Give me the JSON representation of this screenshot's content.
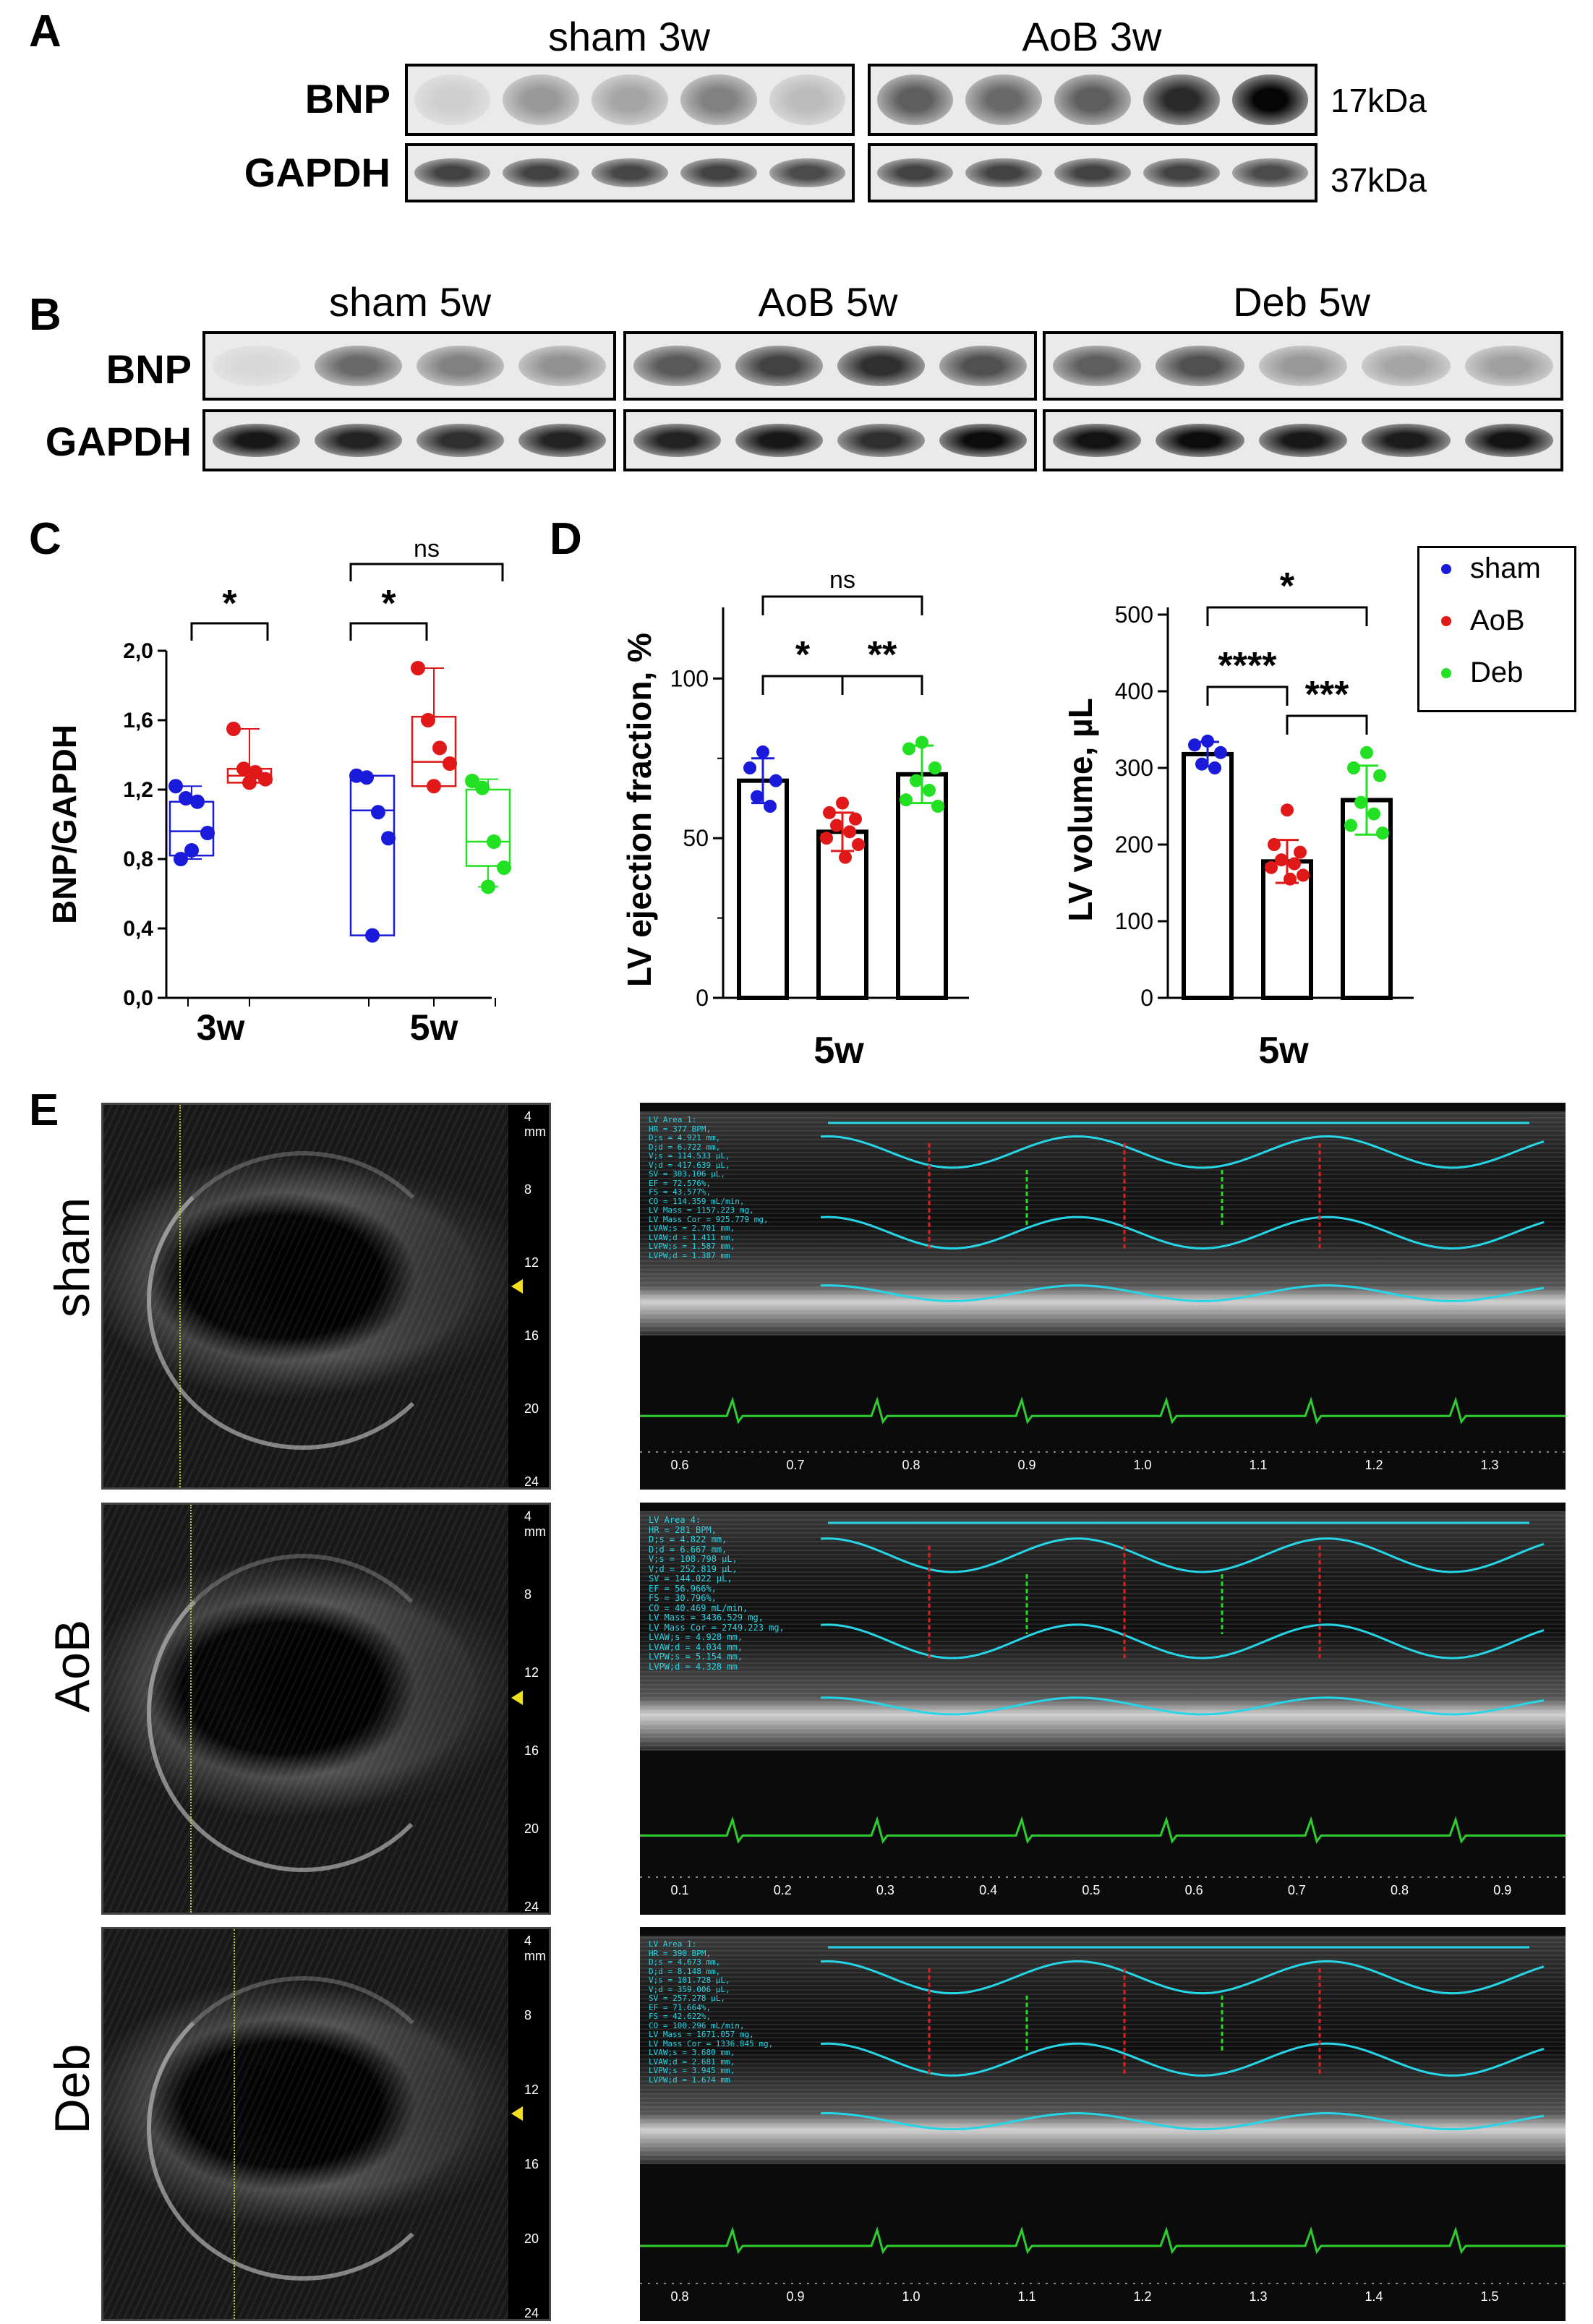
{
  "panels": {
    "A": "A",
    "B": "B",
    "C": "C",
    "D": "D",
    "E": "E"
  },
  "blots": {
    "a": {
      "groups": [
        "sham 3w",
        "AoB 3w"
      ],
      "rows": [
        "BNP",
        "GAPDH"
      ],
      "sizes": [
        "17kDa",
        "37kDa"
      ],
      "bnp_band_intensity": [
        [
          0.12,
          0.35,
          0.3,
          0.45,
          0.2
        ],
        [
          0.6,
          0.55,
          0.6,
          0.82,
          0.98
        ]
      ],
      "gapdh_band_intensity": [
        [
          0.72,
          0.72,
          0.7,
          0.72,
          0.68
        ],
        [
          0.72,
          0.72,
          0.72,
          0.72,
          0.68
        ]
      ]
    },
    "b": {
      "groups": [
        "sham 5w",
        "AoB 5w",
        "Deb 5w"
      ],
      "rows": [
        "BNP",
        "GAPDH"
      ],
      "bnp_band_intensity": [
        [
          0.08,
          0.55,
          0.45,
          0.38
        ],
        [
          0.62,
          0.72,
          0.8,
          0.66
        ],
        [
          0.6,
          0.66,
          0.35,
          0.3,
          0.32
        ]
      ],
      "gapdh_band_intensity": [
        [
          0.9,
          0.85,
          0.8,
          0.85
        ],
        [
          0.85,
          0.9,
          0.8,
          0.95
        ],
        [
          0.92,
          0.95,
          0.9,
          0.88,
          0.92
        ]
      ]
    }
  },
  "colors": {
    "sham": "#1a1adb",
    "AoB": "#e01818",
    "Deb": "#22e022",
    "cyan": "#27d6e6",
    "ecg": "#2ecc2e"
  },
  "legend": [
    {
      "name": "sham",
      "color": "#1a1adb"
    },
    {
      "name": "AoB",
      "color": "#e01818"
    },
    {
      "name": "Deb",
      "color": "#22e022"
    }
  ],
  "chart_data": [
    {
      "type": "box",
      "ylabel": "BNP/GAPDH",
      "ylim": [
        0.0,
        2.0
      ],
      "yticks": [
        "0,0",
        "0,4",
        "0,8",
        "1,2",
        "1,6",
        "2,0"
      ],
      "categories": [
        "3w",
        "5w"
      ],
      "groups": [
        {
          "category": "3w",
          "series": "sham",
          "color": "#1a1adb",
          "q1": 0.82,
          "median": 0.96,
          "q3": 1.13,
          "min": 0.8,
          "max": 1.22,
          "points": [
            1.22,
            1.15,
            1.13,
            0.95,
            0.85,
            0.8
          ]
        },
        {
          "category": "3w",
          "series": "AoB",
          "color": "#e01818",
          "q1": 1.24,
          "median": 1.28,
          "q3": 1.32,
          "min": 1.24,
          "max": 1.55,
          "points": [
            1.55,
            1.32,
            1.3,
            1.26,
            1.24
          ]
        },
        {
          "category": "5w",
          "series": "sham",
          "color": "#1a1adb",
          "q1": 0.36,
          "median": 1.08,
          "q3": 1.28,
          "min": 0.36,
          "max": 1.28,
          "points": [
            1.28,
            1.27,
            1.07,
            0.92,
            0.36
          ]
        },
        {
          "category": "5w",
          "series": "AoB",
          "color": "#e01818",
          "q1": 1.22,
          "median": 1.36,
          "q3": 1.62,
          "min": 1.22,
          "max": 1.9,
          "points": [
            1.9,
            1.6,
            1.44,
            1.35,
            1.22
          ]
        },
        {
          "category": "5w",
          "series": "Deb",
          "color": "#22e022",
          "q1": 0.76,
          "median": 0.9,
          "q3": 1.2,
          "min": 0.64,
          "max": 1.26,
          "points": [
            1.25,
            1.21,
            0.9,
            0.75,
            0.64
          ]
        }
      ],
      "annotations": [
        "*",
        "*",
        "ns"
      ]
    },
    {
      "type": "bar",
      "ylabel": "LV ejection fraction, %",
      "xlabel": "5w",
      "ylim": [
        0,
        120
      ],
      "yticks": [
        "0",
        "50",
        "100"
      ],
      "series": [
        {
          "name": "sham",
          "color": "#1a1adb",
          "value": 68,
          "err": 7,
          "points": [
            77,
            72,
            68,
            63,
            60
          ]
        },
        {
          "name": "AoB",
          "color": "#e01818",
          "value": 52,
          "err": 6,
          "points": [
            61,
            58,
            56,
            54,
            52,
            50,
            48,
            44
          ]
        },
        {
          "name": "Deb",
          "color": "#22e022",
          "value": 70,
          "err": 9,
          "points": [
            80,
            78,
            72,
            68,
            65,
            62,
            60
          ]
        }
      ],
      "annotations": [
        "*",
        "**",
        "ns"
      ]
    },
    {
      "type": "bar",
      "ylabel": "LV volume, µL",
      "xlabel": "5w",
      "ylim": [
        0,
        500
      ],
      "yticks": [
        "0",
        "100",
        "200",
        "300",
        "400",
        "500"
      ],
      "series": [
        {
          "name": "sham",
          "color": "#1a1adb",
          "value": 318,
          "err": 16,
          "points": [
            335,
            330,
            320,
            305,
            300
          ]
        },
        {
          "name": "AoB",
          "color": "#e01818",
          "value": 178,
          "err": 28,
          "points": [
            245,
            200,
            190,
            180,
            175,
            170,
            160,
            155
          ]
        },
        {
          "name": "Deb",
          "color": "#22e022",
          "value": 258,
          "err": 45,
          "points": [
            320,
            300,
            290,
            255,
            240,
            225,
            215
          ]
        }
      ],
      "annotations": [
        "****",
        "***",
        "*"
      ]
    }
  ],
  "echo": {
    "rows": [
      "sham",
      "AoB",
      "Deb"
    ],
    "depth_labels": [
      "4 mm",
      "8",
      "12",
      "16",
      "20",
      "24"
    ],
    "sham": {
      "readout": "LV Area 1:\nHR = 377 BPM,\nD;s = 4.921 mm,\nD;d = 6.722 mm,\nV;s = 114.533 µL,\nV;d = 417.639 µL,\nSV = 303.106 µL,\nEF = 72.576%,\nFS = 43.577%,\nCO = 114.359 mL/min,\nLV Mass = 1157.223 mg,\nLV Mass Cor = 925.779 mg,\nLVAW;s = 2.701 mm,\nLVAW;d = 1.411 mm,\nLVPW;s = 1.587 mm,\nLVPW;d = 1.387 mm",
      "ticks": [
        "0.6",
        "0.7",
        "0.8",
        "0.9",
        "1.0",
        "1.1",
        "1.2",
        "1.3"
      ]
    },
    "AoB": {
      "readout": "LV Area 4:\nHR = 281 BPM,\nD;s = 4.822 mm,\nD;d = 6.667 mm,\nV;s = 108.798 µL,\nV;d = 252.819 µL,\nSV = 144.022 µL,\nEF = 56.966%,\nFS = 30.796%,\nCO = 40.469 mL/min,\nLV Mass = 3436.529 mg,\nLV Mass Cor = 2749.223 mg,\nLVAW;s = 4.928 mm,\nLVAW;d = 4.034 mm,\nLVPW;s = 5.154 mm,\nLVPW;d = 4.328 mm",
      "ticks": [
        "0.1",
        "0.2",
        "0.3",
        "0.4",
        "0.5",
        "0.6",
        "0.7",
        "0.8",
        "0.9"
      ]
    },
    "Deb": {
      "readout": "LV Area 1:\nHR = 390 BPM,\nD;s = 4.673 mm,\nD;d = 8.148 mm,\nV;s = 101.728 µL,\nV;d = 359.006 µL,\nSV = 257.278 µL,\nEF = 71.664%,\nFS = 42.622%,\nCO = 100.296 mL/min,\nLV Mass = 1671.057 mg,\nLV Mass Cor = 1336.845 mg,\nLVAW;s = 3.680 mm,\nLVAW;d = 2.681 mm,\nLVPW;s = 3.945 mm,\nLVPW;d = 1.674 mm",
      "ticks": [
        "0.8",
        "0.9",
        "1.0",
        "1.1",
        "1.2",
        "1.3",
        "1.4",
        "1.5"
      ]
    }
  }
}
